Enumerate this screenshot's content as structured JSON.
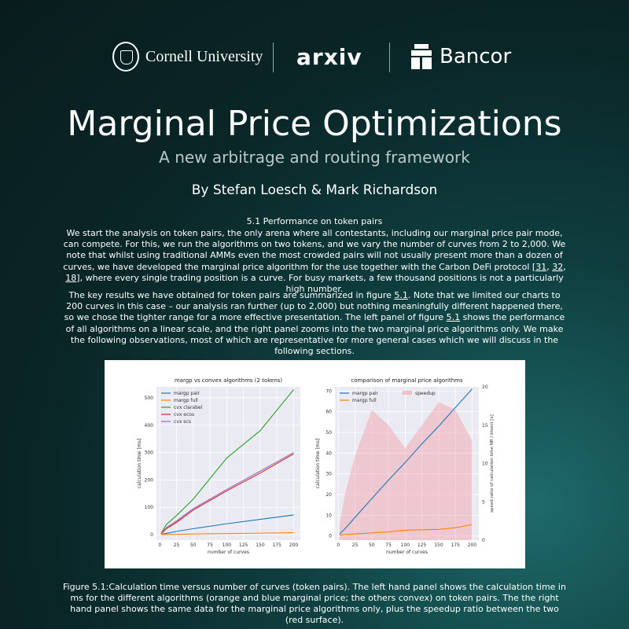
{
  "header": {
    "logos": [
      {
        "text": "Cornell University",
        "icon": "cornell-seal-icon"
      },
      {
        "text": "arXiv",
        "icon": "arxiv-logo-icon"
      },
      {
        "text": "Bancor",
        "icon": "bancor-logo-icon"
      }
    ]
  },
  "title": "Marginal Price Optimizations",
  "subtitle": "A new arbitrage and routing framework",
  "authors": "By Stefan Loesch & Mark Richardson",
  "section_heading": "5.1 Performance on token pairs",
  "para1": {
    "text": "We start the analysis on token pairs, the only arena where all contestants, including our marginal price pair mode, can compete. For this, we run the algorithms on two tokens, and we vary the number of curves from 2 to 2,000. We note that whilst using traditional AMMs even the most crowded pairs will not usually present more than a dozen of curves, we have developed the marginal price algorithm for the use together with the Carbon DeFi protocol [",
    "refs": [
      "31",
      "32",
      "18"
    ],
    "tail": "], where every single trading position is a curve. For busy markets, a few thousand positions is not a particularly high number."
  },
  "para2": {
    "a": "The key results we have obtained for token pairs are summarized in figure ",
    "ref1": "5.1",
    "b": ". Note that we limited our charts to 200 curves in this case – our analysis ran further (up to 2,000) but nothing meaningfully different happened there, so we chose the tighter range for a more effective presentation. The left panel of figure ",
    "ref2": "5.1",
    "c": " shows the performance of all algorithms on a linear scale, and the right panel zooms into the two marginal price algorithms only. We make the following observations, most of which are representative for more general cases which we will discuss in the following sections."
  },
  "caption": "Figure 5.1:Calculation time versus number of curves (token pairs). The left hand panel shows the calculation time in ms for the different algorithms (orange and blue marginal price; the others convex) on token pairs. The the right hand panel shows the same data for the marginal price algorithms only, plus the speedup ratio between the two (red surface).",
  "chart_data": [
    {
      "type": "line",
      "title": "margp vs convex algorithms (2 tokens)",
      "xlabel": "number of curves",
      "ylabel": "calculation time [ms]",
      "xlim": [
        -5,
        210
      ],
      "ylim": [
        -20,
        540
      ],
      "xticks": [
        0,
        25,
        50,
        75,
        100,
        125,
        150,
        175,
        200
      ],
      "yticks": [
        0,
        100,
        200,
        300,
        400,
        500
      ],
      "legend": "top-left",
      "grid": true,
      "x": [
        2,
        10,
        25,
        50,
        100,
        150,
        200
      ],
      "series": [
        {
          "name": "margp pair",
          "color": "#1f77b4",
          "values": [
            1,
            5,
            12,
            22,
            40,
            56,
            72
          ]
        },
        {
          "name": "margp full",
          "color": "#ff7f0e",
          "values": [
            0.5,
            1,
            1.5,
            2.5,
            4,
            5.5,
            7
          ]
        },
        {
          "name": "cvx clarabel",
          "color": "#2ca02c",
          "values": [
            5,
            38,
            70,
            130,
            280,
            380,
            530
          ]
        },
        {
          "name": "cvx ecos",
          "color": "#d62728",
          "values": [
            3,
            22,
            45,
            90,
            160,
            225,
            295
          ]
        },
        {
          "name": "cvx scs",
          "color": "#9467bd",
          "values": [
            4,
            26,
            50,
            95,
            165,
            232,
            300
          ]
        }
      ]
    },
    {
      "type": "line",
      "title": "comparison of marginal price algorithms",
      "xlabel": "number of curves",
      "ylabel": "calculation time [ms]",
      "y2label": "speed ratio of calculation time NR / bisect [x]",
      "xlim": [
        -5,
        210
      ],
      "ylim": [
        -2,
        72
      ],
      "y2lim": [
        0,
        20
      ],
      "xticks": [
        0,
        25,
        50,
        75,
        100,
        125,
        150,
        175,
        200
      ],
      "yticks": [
        0,
        10,
        20,
        30,
        40,
        50,
        60,
        70
      ],
      "y2ticks": [
        0,
        5,
        10,
        15,
        20
      ],
      "legend": "top-left",
      "grid": true,
      "x": [
        2,
        10,
        25,
        50,
        75,
        100,
        125,
        150,
        175,
        200
      ],
      "series": [
        {
          "name": "margp pair",
          "color": "#1f77b4",
          "values": [
            1,
            3.5,
            9,
            18,
            27,
            35.5,
            44.5,
            53,
            62,
            71
          ]
        },
        {
          "name": "margp full",
          "color": "#ff7f0e",
          "values": [
            0.5,
            0.7,
            1,
            1.5,
            2,
            2.8,
            3,
            3.2,
            4,
            5.5
          ]
        },
        {
          "name": "speedup",
          "color": "#f4a0a6",
          "type": "area",
          "values": [
            2,
            6,
            11,
            17,
            15,
            12,
            15,
            18,
            17,
            13
          ]
        }
      ]
    }
  ]
}
